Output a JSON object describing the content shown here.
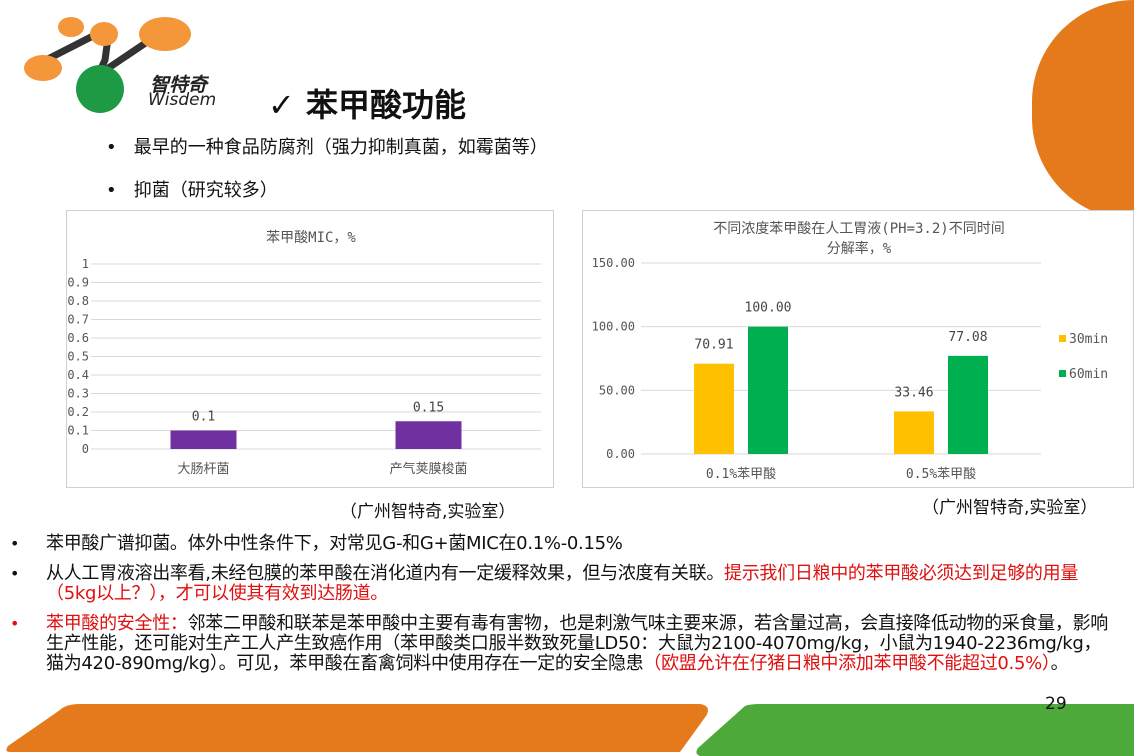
{
  "logo": {
    "cn": "智特奇",
    "en": "Wisdem"
  },
  "title": {
    "check": "✓",
    "text": "苯甲酸功能"
  },
  "bullets": [
    "最早的一种食品防腐剂（强力抑制真菌，如霉菌等）",
    "抑菌（研究较多）"
  ],
  "chart_data": [
    {
      "type": "bar",
      "title": "苯甲酸MIC，%",
      "categories": [
        "大肠杆菌",
        "产气荚膜梭菌"
      ],
      "values": [
        0.1,
        0.15
      ],
      "value_labels": [
        "0.1",
        "0.15"
      ],
      "ylim": [
        0,
        1
      ],
      "yticks": [
        "0",
        "0.1",
        "0.2",
        "0.3",
        "0.4",
        "0.5",
        "0.6",
        "0.7",
        "0.8",
        "0.9",
        "1"
      ],
      "color": "#7030a0",
      "grid": true
    },
    {
      "type": "bar",
      "title": [
        "不同浓度苯甲酸在人工胃液(PH=3.2)不同时间",
        "分解率，%"
      ],
      "categories": [
        "0.1%苯甲酸",
        "0.5%苯甲酸"
      ],
      "series": [
        {
          "name": "30min",
          "values": [
            70.91,
            33.46
          ],
          "labels": [
            "70.91",
            "33.46"
          ],
          "color": "#ffc000"
        },
        {
          "name": "60min",
          "values": [
            100.0,
            77.08
          ],
          "labels": [
            "100.00",
            "77.08"
          ],
          "color": "#00b050"
        }
      ],
      "ylim": [
        0,
        150
      ],
      "yticks": [
        "0.00",
        "50.00",
        "100.00",
        "150.00"
      ],
      "legend": "right",
      "grid": true
    }
  ],
  "sources": [
    "（广州智特奇,实验室）",
    "（广州智特奇,实验室）"
  ],
  "paragraphs": {
    "p1": "苯甲酸广谱抑菌。体外中性条件下，对常见G-和G+菌MIC在0.1%-0.15%",
    "p2a": "从人工胃液溶出率看,未经包膜的苯甲酸在消化道内有一定缓释效果，但与浓度有关联。",
    "p2b": "提示我们日粮中的苯甲酸必须达到足够的用量（5kg以上？），才可以使其有效到达肠道。",
    "p3a": "苯甲酸的安全性：",
    "p3b": "邻苯二甲酸和联苯是苯甲酸中主要有毒有害物，也是刺激气味主要来源，若含量过高，会直接降低动物的采食量，影响生产性能，还可能对生产工人产生致癌作用（苯甲酸类口服半数致死量LD50：大鼠为2100-4070mg/kg，小鼠为1940-2236mg/kg，猫为420-890mg/kg）。可见，苯甲酸在畜禽饲料中使用存在一定的安全隐患",
    "p3c": "（欧盟允许在仔猪日粮中添加苯甲酸不能超过0.5%）",
    "p3d": "。"
  },
  "page_number": "29",
  "colors": {
    "orange": "#e57a1c",
    "green": "#4ca93a",
    "red": "#e01010"
  }
}
